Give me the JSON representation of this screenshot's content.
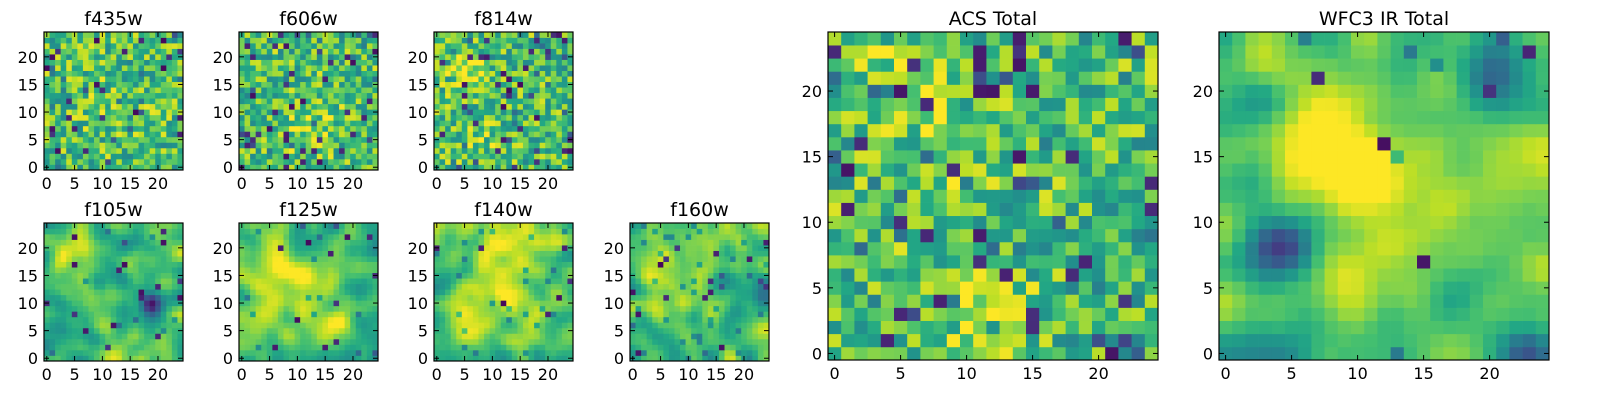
{
  "figure": {
    "colormap": "viridis",
    "colors": {
      "frame": "#000000",
      "background": "#ffffff"
    },
    "image_size": [
      25,
      25
    ]
  },
  "chart_data": [
    {
      "type": "heatmap",
      "title": "f435w",
      "xticks": [
        0,
        5,
        10,
        15,
        20
      ],
      "yticks": [
        0,
        5,
        10,
        15,
        20
      ],
      "xlim": [
        -0.5,
        24.5
      ],
      "ylim": [
        -0.5,
        24.5
      ],
      "values": "25x25 pixel grid (noise, mostly green-yellow, scattered dark pixels)"
    },
    {
      "type": "heatmap",
      "title": "f606w",
      "xticks": [
        0,
        5,
        10,
        15,
        20
      ],
      "yticks": [
        0,
        5,
        10,
        15,
        20
      ],
      "xlim": [
        -0.5,
        24.5
      ],
      "ylim": [
        -0.5,
        24.5
      ],
      "values": "25x25 pixel grid (noise, slightly brighter central column)"
    },
    {
      "type": "heatmap",
      "title": "f814w",
      "xticks": [
        0,
        5,
        10,
        15,
        20
      ],
      "yticks": [
        0,
        5,
        10,
        15,
        20
      ],
      "xlim": [
        -0.5,
        24.5
      ],
      "ylim": [
        -0.5,
        24.5
      ],
      "values": "25x25 pixel grid (noise, bright streak near x≈5)"
    },
    {
      "type": "heatmap",
      "title": "f105w",
      "xticks": [
        0,
        5,
        10,
        15,
        20
      ],
      "yticks": [
        0,
        5,
        10,
        15,
        20
      ],
      "xlim": [
        -0.5,
        24.5
      ],
      "ylim": [
        -0.5,
        24.5
      ],
      "values": "25x25 pixel grid (smoother, bright upper-left, dark patch near x≈19,y≈10)"
    },
    {
      "type": "heatmap",
      "title": "f125w",
      "xticks": [
        0,
        5,
        10,
        15,
        20
      ],
      "yticks": [
        0,
        5,
        10,
        15,
        20
      ],
      "xlim": [
        -0.5,
        24.5
      ],
      "ylim": [
        -0.5,
        24.5
      ],
      "values": "25x25 pixel grid (smooth, bright diagonal band)"
    },
    {
      "type": "heatmap",
      "title": "f140w",
      "xticks": [
        0,
        5,
        10,
        15,
        20
      ],
      "yticks": [
        0,
        5,
        10,
        15,
        20
      ],
      "xlim": [
        -0.5,
        24.5
      ],
      "ylim": [
        -0.5,
        24.5
      ],
      "values": "25x25 pixel grid (smooth, bright center)"
    },
    {
      "type": "heatmap",
      "title": "f160w",
      "xticks": [
        0,
        5,
        10,
        15,
        20
      ],
      "yticks": [
        0,
        5,
        10,
        15,
        20
      ],
      "xlim": [
        -0.5,
        24.5
      ],
      "ylim": [
        -0.5,
        24.5
      ],
      "values": "25x25 pixel grid (smooth, bright left-center, dark right edge)"
    },
    {
      "type": "heatmap",
      "title": "ACS Total",
      "xticks": [
        0,
        5,
        10,
        15,
        20
      ],
      "yticks": [
        0,
        5,
        10,
        15,
        20
      ],
      "xlim": [
        -0.5,
        24.5
      ],
      "ylim": [
        -0.5,
        24.5
      ],
      "values": "25x25 pixel grid (noisy, bright near x≈6,y≈21 and x≈12,y≈3)"
    },
    {
      "type": "heatmap",
      "title": "WFC3 IR Total",
      "xticks": [
        0,
        5,
        10,
        15,
        20
      ],
      "yticks": [
        0,
        5,
        10,
        15,
        20
      ],
      "xlim": [
        -0.5,
        24.5
      ],
      "ylim": [
        -0.5,
        24.5
      ],
      "values": "25x25 pixel grid (smooth, bright vertical band x≈6-12, dark blobs near x≈4,y≈8 and top-right)"
    }
  ]
}
